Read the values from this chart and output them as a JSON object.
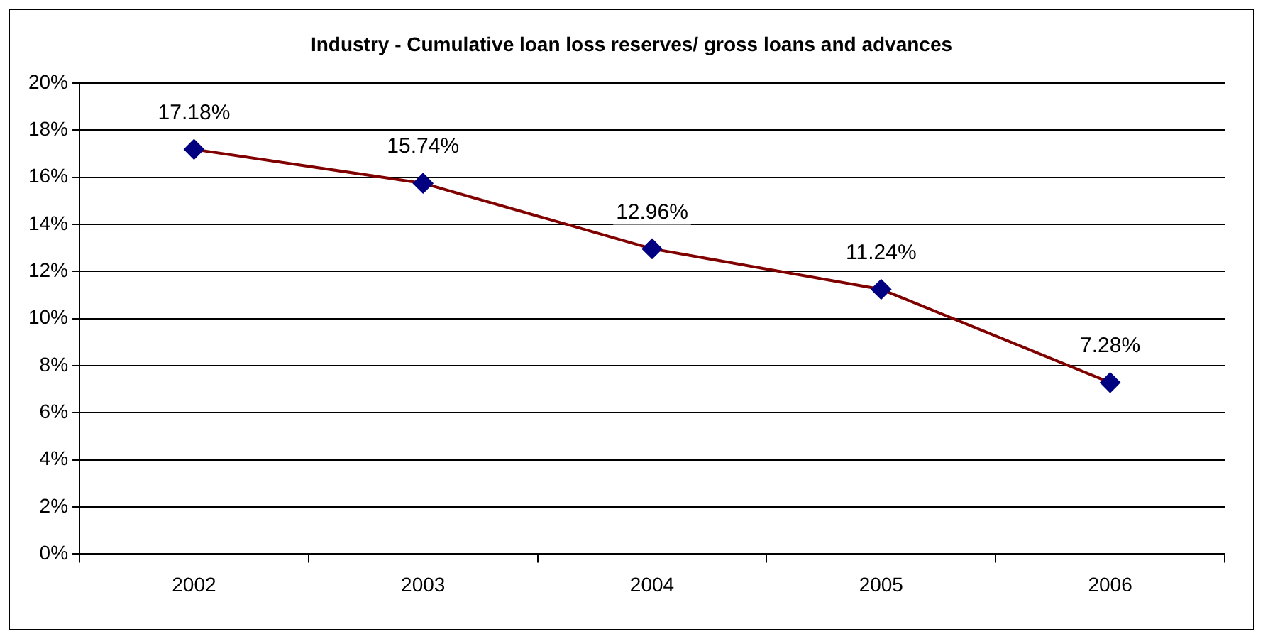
{
  "chart_data": {
    "type": "line",
    "title": "Industry - Cumulative loan loss reserves/ gross loans and advances",
    "categories": [
      "2002",
      "2003",
      "2004",
      "2005",
      "2006"
    ],
    "series": [
      {
        "color": "#800000",
        "colors": [
          "#000080",
          "#000080",
          "#000080",
          "#000080",
          "#000080"
        ],
        "values": [
          17.18,
          15.74,
          12.96,
          11.24,
          7.28
        ],
        "value_labels": [
          "17.18%",
          "15.74%",
          "12.96%",
          "11.24%",
          "7.28%"
        ]
      }
    ],
    "ylim": [
      0,
      20
    ],
    "yticks": [
      {
        "value": 0,
        "label": "0%"
      },
      {
        "value": 2,
        "label": "2%"
      },
      {
        "value": 4,
        "label": "4%"
      },
      {
        "value": 6,
        "label": "6%"
      },
      {
        "value": 8,
        "label": "8%"
      },
      {
        "value": 10,
        "label": "10%"
      },
      {
        "value": 12,
        "label": "12%"
      },
      {
        "value": 14,
        "label": "14%"
      },
      {
        "value": 16,
        "label": "16%"
      },
      {
        "value": 18,
        "label": "18%"
      },
      {
        "value": 20,
        "label": "20%"
      }
    ],
    "grid": "y",
    "legend": false,
    "marker": "diamond",
    "line_style": "solid"
  }
}
